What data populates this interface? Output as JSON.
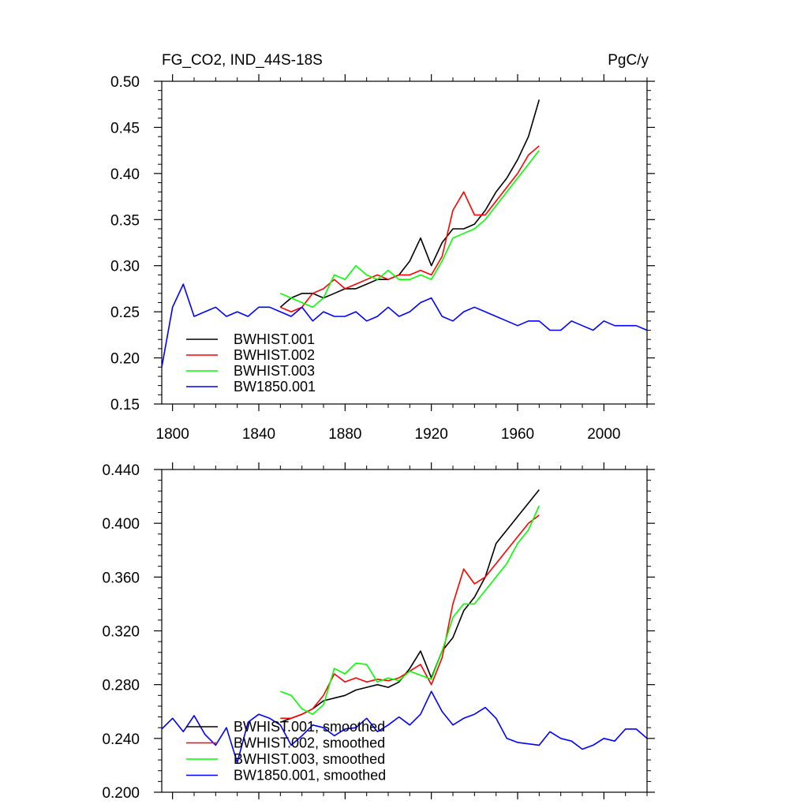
{
  "chart_data": [
    {
      "type": "line",
      "title_left": "FG_CO2, IND_44S-18S",
      "title_right": "PgC/y",
      "xlabel": "",
      "ylabel": "",
      "xlim": [
        1795,
        2020
      ],
      "ylim": [
        0.15,
        0.5
      ],
      "x_ticks": [
        1800,
        1840,
        1880,
        1920,
        1960,
        2000
      ],
      "x_tick_labels": [
        "1800",
        "1840",
        "1880",
        "1920",
        "1960",
        "2000"
      ],
      "y_ticks": [
        0.15,
        0.2,
        0.25,
        0.3,
        0.35,
        0.4,
        0.45,
        0.5
      ],
      "y_tick_labels": [
        "0.15",
        "0.20",
        "0.25",
        "0.30",
        "0.35",
        "0.40",
        "0.45",
        "0.50"
      ],
      "legend_position": "bottom-left",
      "series": [
        {
          "name": "BWHIST.001",
          "color": "#000000",
          "x_start": 1850,
          "x_step": 5,
          "values": [
            0.255,
            0.265,
            0.27,
            0.27,
            0.265,
            0.27,
            0.275,
            0.275,
            0.28,
            0.285,
            0.285,
            0.29,
            0.305,
            0.33,
            0.3,
            0.325,
            0.34,
            0.34,
            0.345,
            0.36,
            0.38,
            0.395,
            0.415,
            0.44,
            0.48
          ]
        },
        {
          "name": "BWHIST.002",
          "color": "#ff0000",
          "x_start": 1850,
          "x_step": 5,
          "values": [
            0.255,
            0.25,
            0.255,
            0.27,
            0.275,
            0.285,
            0.275,
            0.28,
            0.285,
            0.29,
            0.285,
            0.29,
            0.29,
            0.295,
            0.29,
            0.31,
            0.36,
            0.38,
            0.355,
            0.355,
            0.37,
            0.385,
            0.4,
            0.42,
            0.43
          ]
        },
        {
          "name": "BWHIST.003",
          "color": "#00ff00",
          "x_start": 1850,
          "x_step": 5,
          "values": [
            0.27,
            0.265,
            0.26,
            0.255,
            0.265,
            0.29,
            0.285,
            0.3,
            0.29,
            0.285,
            0.295,
            0.285,
            0.285,
            0.29,
            0.285,
            0.305,
            0.33,
            0.335,
            0.34,
            0.35,
            0.365,
            0.38,
            0.395,
            0.41,
            0.425
          ]
        },
        {
          "name": "BW1850.001",
          "color": "#0000ff",
          "x_start": 1795,
          "x_step": 5,
          "values": [
            0.19,
            0.255,
            0.28,
            0.245,
            0.25,
            0.255,
            0.245,
            0.25,
            0.245,
            0.255,
            0.255,
            0.25,
            0.245,
            0.255,
            0.24,
            0.25,
            0.245,
            0.245,
            0.25,
            0.24,
            0.245,
            0.255,
            0.245,
            0.25,
            0.26,
            0.265,
            0.245,
            0.24,
            0.25,
            0.255,
            0.25,
            0.245,
            0.24,
            0.235,
            0.24,
            0.24,
            0.23,
            0.23,
            0.24,
            0.235,
            0.23,
            0.24,
            0.235,
            0.235,
            0.235,
            0.23
          ]
        }
      ]
    },
    {
      "type": "line",
      "title_left": "",
      "title_right": "",
      "xlabel": "",
      "ylabel": "",
      "xlim": [
        1795,
        2020
      ],
      "ylim": [
        0.2,
        0.44
      ],
      "x_ticks": [
        1800,
        1840,
        1880,
        1920,
        1960,
        2000
      ],
      "x_tick_labels": [],
      "y_ticks": [
        0.2,
        0.24,
        0.28,
        0.32,
        0.36,
        0.4,
        0.44
      ],
      "y_tick_labels": [
        "0.200",
        "0.240",
        "0.280",
        "0.320",
        "0.360",
        "0.400",
        "0.440"
      ],
      "legend_position": "bottom-left",
      "series": [
        {
          "name": "BWHIST.001, smoothed",
          "color": "#000000",
          "x_start": 1850,
          "x_step": 5,
          "values": [
            0.252,
            0.255,
            0.258,
            0.262,
            0.268,
            0.27,
            0.272,
            0.276,
            0.278,
            0.28,
            0.278,
            0.282,
            0.292,
            0.305,
            0.285,
            0.305,
            0.315,
            0.335,
            0.345,
            0.36,
            0.385,
            0.395,
            0.405,
            0.415,
            0.425
          ]
        },
        {
          "name": "BWHIST.002, smoothed",
          "color": "#ff0000",
          "x_start": 1850,
          "x_step": 5,
          "values": [
            0.255,
            0.255,
            0.258,
            0.262,
            0.272,
            0.288,
            0.282,
            0.285,
            0.282,
            0.284,
            0.283,
            0.285,
            0.29,
            0.295,
            0.28,
            0.3,
            0.34,
            0.366,
            0.355,
            0.36,
            0.37,
            0.38,
            0.39,
            0.4,
            0.406
          ]
        },
        {
          "name": "BWHIST.003, smoothed",
          "color": "#00ff00",
          "x_start": 1850,
          "x_step": 5,
          "values": [
            0.275,
            0.272,
            0.262,
            0.258,
            0.265,
            0.292,
            0.288,
            0.296,
            0.295,
            0.282,
            0.285,
            0.283,
            0.29,
            0.287,
            0.284,
            0.305,
            0.33,
            0.34,
            0.34,
            0.35,
            0.36,
            0.37,
            0.385,
            0.395,
            0.413
          ]
        },
        {
          "name": "BW1850.001, smoothed",
          "color": "#0000ff",
          "x_start": 1795,
          "x_step": 5,
          "values": [
            0.247,
            0.255,
            0.245,
            0.257,
            0.243,
            0.235,
            0.248,
            0.222,
            0.252,
            0.258,
            0.255,
            0.25,
            0.235,
            0.242,
            0.25,
            0.248,
            0.242,
            0.247,
            0.248,
            0.255,
            0.245,
            0.25,
            0.256,
            0.25,
            0.258,
            0.275,
            0.26,
            0.25,
            0.255,
            0.258,
            0.263,
            0.255,
            0.24,
            0.237,
            0.236,
            0.235,
            0.245,
            0.24,
            0.238,
            0.232,
            0.235,
            0.24,
            0.238,
            0.247,
            0.247,
            0.24
          ]
        }
      ]
    }
  ]
}
